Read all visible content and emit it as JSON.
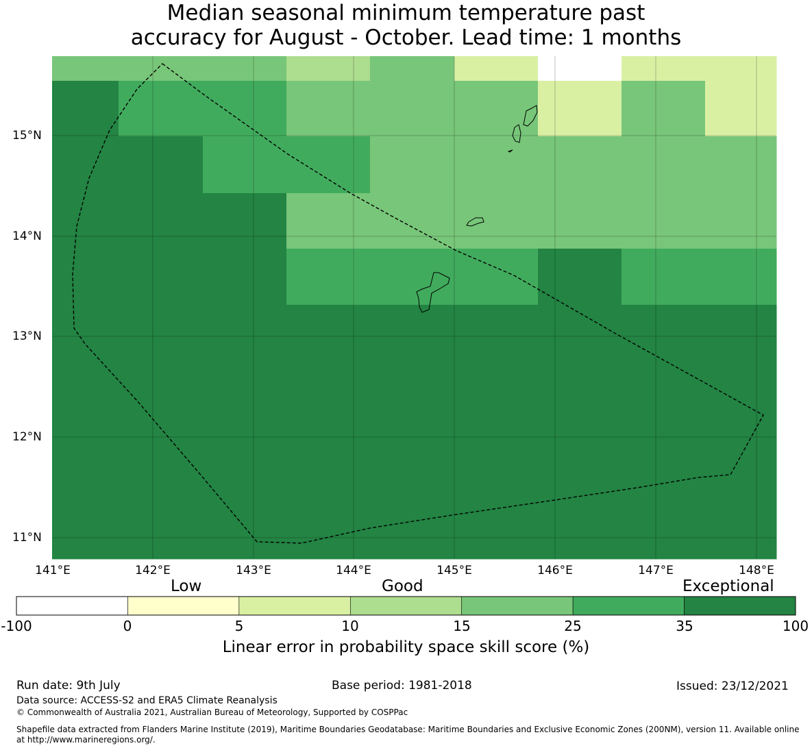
{
  "title": {
    "line1": "Median seasonal minimum temperature past",
    "line2": "accuracy for August - October. Lead time: 1 months"
  },
  "map": {
    "lon_ticks": [
      "141°E",
      "142°E",
      "143°E",
      "144°E",
      "145°E",
      "146°E",
      "147°E",
      "148°E"
    ],
    "lat_ticks": [
      "15°N",
      "14°N",
      "13°N",
      "12°N",
      "11°N"
    ],
    "grid_lines": true
  },
  "colorbar": {
    "category_labels": [
      "Low",
      "Good",
      "Exceptional"
    ],
    "ticks": [
      "-100",
      "0",
      "5",
      "10",
      "15",
      "25",
      "35",
      "100"
    ],
    "colors": [
      "#ffffff",
      "#ffffcc",
      "#d9f0a3",
      "#addd8e",
      "#78c679",
      "#41ab5d",
      "#238443"
    ],
    "label": "Linear error in probability space skill score (%)"
  },
  "footer": {
    "run_date": "Run date: 9th July",
    "base_period": "Base period: 1981-2018",
    "issued": "Issued: 23/12/2021",
    "data_source": "Data source: ACCESS-S2 and ERA5 Climate Reanalysis",
    "copyright": "© Commonwealth of Australia 2021, Australian Bureau of Meteorology, Supported by COSPPac",
    "shapefile_line1": "Shapefile data extracted from Flanders Marine Institute (2019), Maritime Boundaries Geodatabase: Maritime Boundaries and Exclusive Economic Zones (200NM), version 11. Available online",
    "shapefile_line2": "at http://www.marineregions.org/."
  }
}
